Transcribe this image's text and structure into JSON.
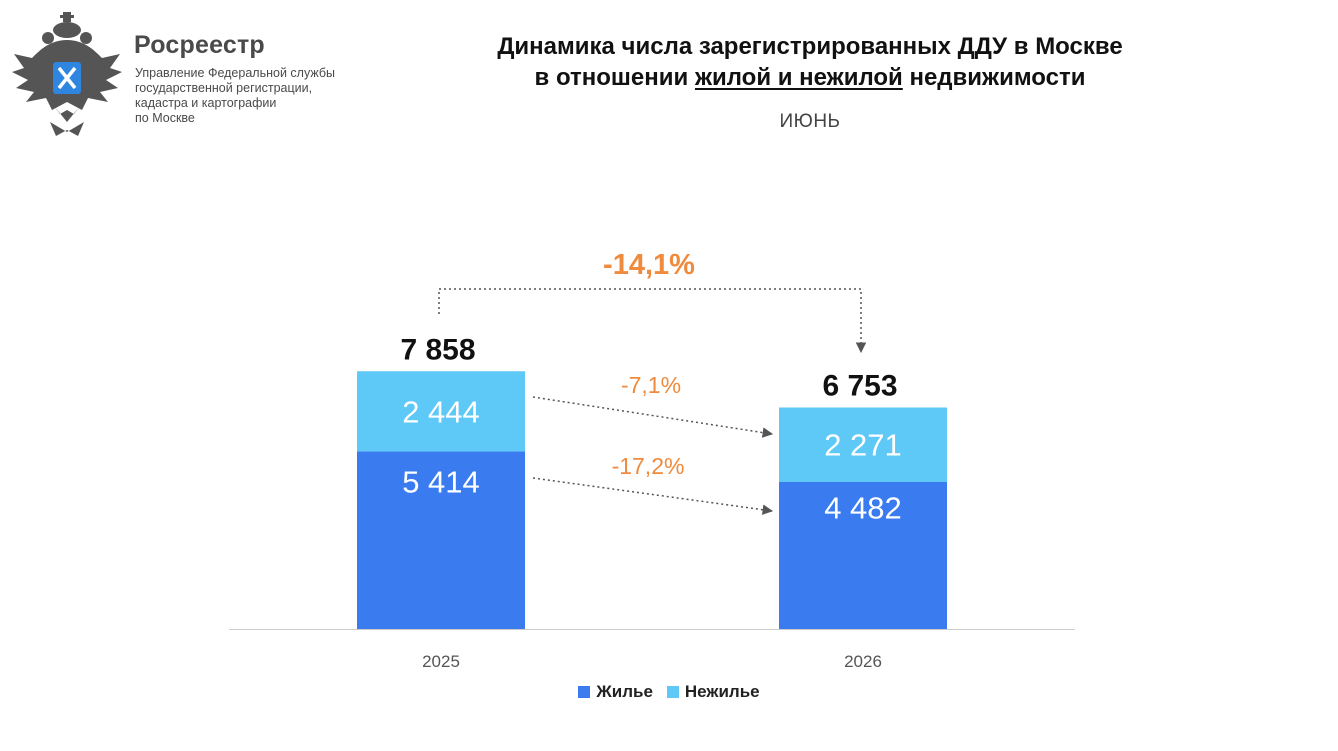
{
  "header": {
    "org_name": "Росреестр",
    "org_subtitle_lines": [
      "Управление Федеральной службы",
      "государственной регистрации,",
      "кадастра и картографии",
      "по Москве"
    ],
    "title_line1": "Динамика числа зарегистрированных ДДУ в Москве",
    "title_line2_pre": "в отношении ",
    "title_line2_underlined": "жилой и нежилой",
    "title_line2_post": " недвижимости",
    "subtitle": "ИЮНЬ"
  },
  "colors": {
    "residential": "#3a7bf0",
    "nonresidential": "#5ec8f7",
    "change_text": "#f08a3c",
    "axis": "#cccccc",
    "arrow": "#555555"
  },
  "chart_data": {
    "type": "bar",
    "stacked": true,
    "categories": [
      "2025",
      "2026"
    ],
    "series": [
      {
        "name": "Жилье",
        "values": [
          5414,
          4482
        ],
        "labels": [
          "5 414",
          "4 482"
        ]
      },
      {
        "name": "Нежилье",
        "values": [
          2444,
          2271
        ],
        "labels": [
          "2 444",
          "2 271"
        ]
      }
    ],
    "totals": [
      7858,
      6753
    ],
    "total_labels": [
      "7 858",
      "6 753"
    ],
    "change_total": "-14,1%",
    "change_nonresidential": "-7,1%",
    "change_residential": "-17,2%",
    "legend": [
      "Жилье",
      "Нежилье"
    ],
    "legend_position": "bottom",
    "grid": false
  }
}
